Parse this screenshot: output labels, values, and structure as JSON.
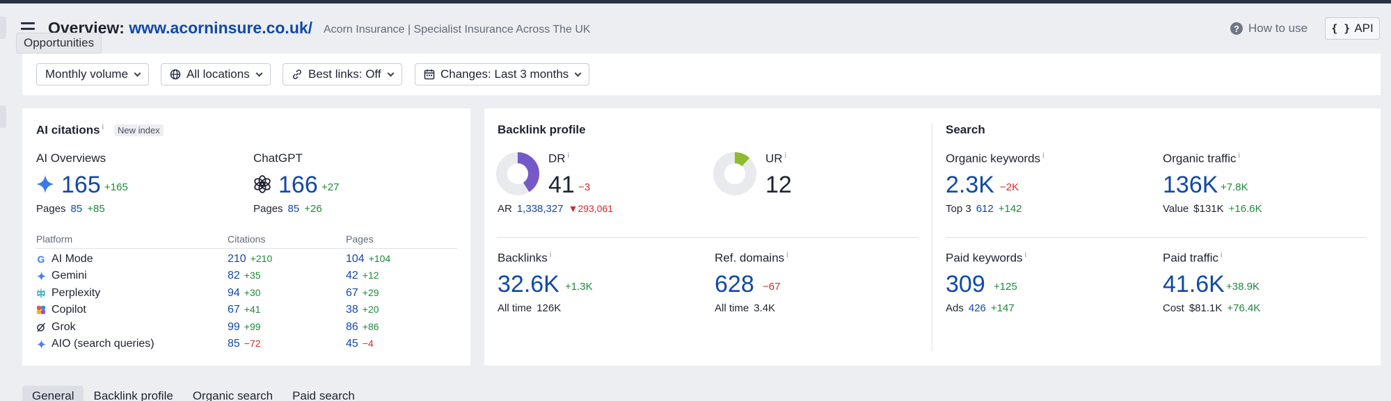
{
  "header": {
    "title_prefix": "Overview:",
    "url": "www.acorninsure.co.uk/",
    "subtitle": "Acorn Insurance | Specialist Insurance Across The UK",
    "tooltip": "Opportunities",
    "how_to_use": "How to use",
    "api_label": "API"
  },
  "filters": [
    {
      "label": "Monthly volume"
    },
    {
      "label": "All locations"
    },
    {
      "label": "Best links: Off"
    },
    {
      "label": "Changes: Last 3 months"
    }
  ],
  "ai_citations": {
    "title": "AI citations",
    "info": "i",
    "badge": "New index",
    "ai_overviews": {
      "label": "AI Overviews",
      "value": "165",
      "delta": "+165",
      "pages_label": "Pages",
      "pages_value": "85",
      "pages_delta": "+85"
    },
    "chatgpt": {
      "label": "ChatGPT",
      "value": "166",
      "delta": "+27",
      "pages_label": "Pages",
      "pages_value": "85",
      "pages_delta": "+26"
    },
    "table": {
      "headers": [
        "Platform",
        "Citations",
        "Pages"
      ],
      "rows": [
        {
          "name": "AI Mode",
          "citations": "210",
          "c_delta": "+210",
          "pages": "104",
          "p_delta": "+104",
          "c_neg": false,
          "p_neg": false
        },
        {
          "name": "Gemini",
          "citations": "82",
          "c_delta": "+35",
          "pages": "42",
          "p_delta": "+12",
          "c_neg": false,
          "p_neg": false
        },
        {
          "name": "Perplexity",
          "citations": "94",
          "c_delta": "+30",
          "pages": "67",
          "p_delta": "+29",
          "c_neg": false,
          "p_neg": false
        },
        {
          "name": "Copilot",
          "citations": "67",
          "c_delta": "+41",
          "pages": "38",
          "p_delta": "+20",
          "c_neg": false,
          "p_neg": false
        },
        {
          "name": "Grok",
          "citations": "99",
          "c_delta": "+99",
          "pages": "86",
          "p_delta": "+86",
          "c_neg": false,
          "p_neg": false
        },
        {
          "name": "AIO (search queries)",
          "citations": "85",
          "c_delta": "−72",
          "pages": "45",
          "p_delta": "−4",
          "c_neg": true,
          "p_neg": true
        }
      ]
    }
  },
  "backlink_profile": {
    "title": "Backlink profile",
    "dr": {
      "label": "DR",
      "value": "41",
      "delta": "−3",
      "fill": 0.41,
      "color": "#7559c8"
    },
    "ur": {
      "label": "UR",
      "value": "12",
      "fill": 0.12,
      "color": "#8fbb2d"
    },
    "ar": {
      "label": "AR",
      "value": "1,338,327",
      "delta": "293,061"
    },
    "backlinks": {
      "label": "Backlinks",
      "value": "32.6K",
      "delta": "+1.3K",
      "sub_label": "All time",
      "sub_value": "126K"
    },
    "ref_domains": {
      "label": "Ref. domains",
      "value": "628",
      "delta": "−67",
      "sub_label": "All time",
      "sub_value": "3.4K"
    }
  },
  "search": {
    "title": "Search",
    "organic_keywords": {
      "label": "Organic keywords",
      "value": "2.3K",
      "delta": "−2K",
      "sub_label": "Top 3",
      "sub_value": "612",
      "sub_delta": "+142"
    },
    "organic_traffic": {
      "label": "Organic traffic",
      "value": "136K",
      "delta": "+7.8K",
      "sub_label": "Value",
      "sub_value": "$131K",
      "sub_delta": "+16.6K"
    },
    "paid_keywords": {
      "label": "Paid keywords",
      "value": "309",
      "delta": "+125",
      "sub_label": "Ads",
      "sub_value": "426",
      "sub_delta": "+147"
    },
    "paid_traffic": {
      "label": "Paid traffic",
      "value": "41.6K",
      "delta": "+38.9K",
      "sub_label": "Cost",
      "sub_value": "$81.1K",
      "sub_delta": "+76.4K"
    }
  },
  "tabs": [
    "General",
    "Backlink profile",
    "Organic search",
    "Paid search"
  ],
  "colors": {
    "accent": "#1049a8",
    "positive": "#1c8a3a",
    "negative": "#d12b2b"
  }
}
